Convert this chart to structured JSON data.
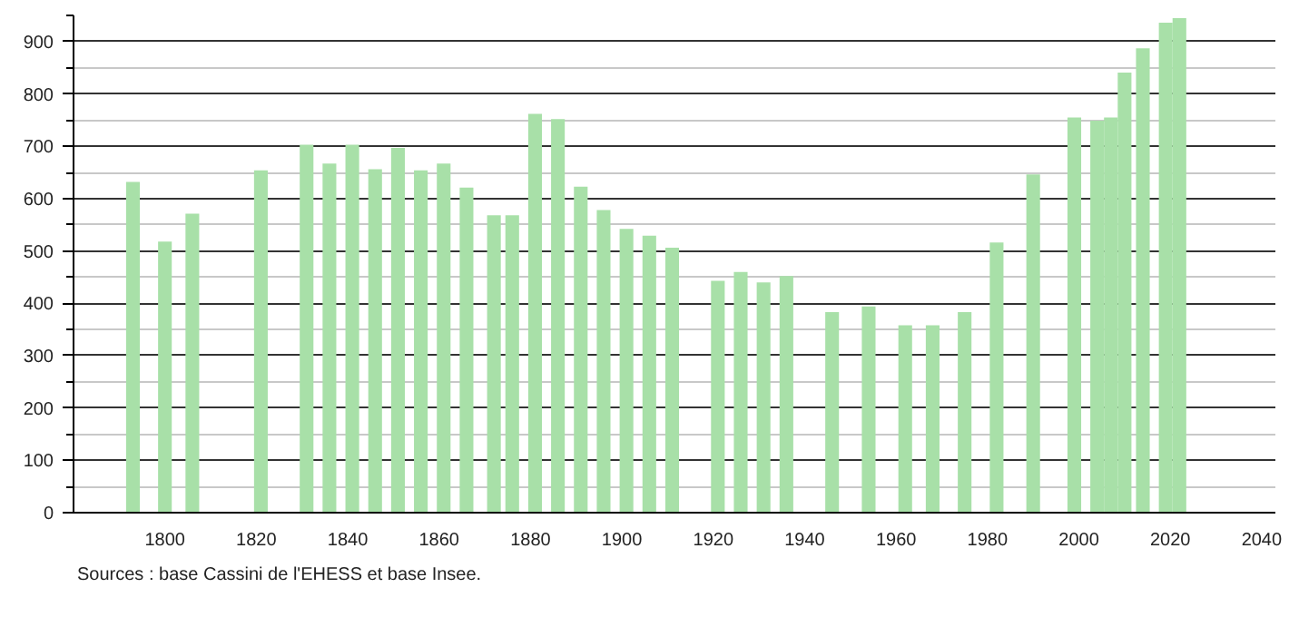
{
  "chart_data": {
    "type": "bar",
    "x": [
      1793,
      1800,
      1806,
      1821,
      1831,
      1836,
      1841,
      1846,
      1851,
      1856,
      1861,
      1866,
      1872,
      1876,
      1881,
      1886,
      1891,
      1896,
      1901,
      1906,
      1911,
      1921,
      1926,
      1931,
      1936,
      1946,
      1954,
      1962,
      1968,
      1975,
      1982,
      1990,
      1999,
      2004,
      2007,
      2010,
      2014,
      2019,
      2022
    ],
    "values": [
      632,
      518,
      571,
      654,
      703,
      667,
      703,
      656,
      697,
      654,
      667,
      621,
      568,
      568,
      762,
      752,
      623,
      578,
      542,
      529,
      506,
      443,
      460,
      440,
      452,
      383,
      394,
      358,
      358,
      383,
      516,
      646,
      755,
      749,
      755,
      841,
      887,
      936,
      945
    ],
    "color": "#a8e0a8",
    "xlim": [
      1780,
      2043
    ],
    "ylim": [
      0,
      950
    ],
    "xticks": [
      1800,
      1820,
      1840,
      1860,
      1880,
      1900,
      1920,
      1940,
      1960,
      1980,
      2000,
      2020,
      2040
    ],
    "yticks": [
      0,
      100,
      200,
      300,
      400,
      500,
      600,
      700,
      800,
      900
    ],
    "grid": "y",
    "annotations": [
      "Sources : base Cassini de l'EHESS et base Insee."
    ]
  }
}
